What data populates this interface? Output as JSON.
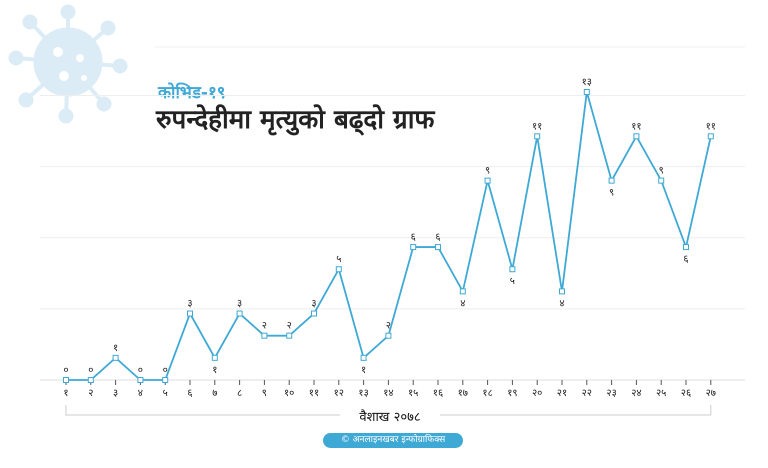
{
  "header": {
    "kicker": "कोभिड-१९",
    "title": "रुपन्देहीमा मृत्युको बढ्दो ग्राफ"
  },
  "credit": "© अनलाइनखबर इन्फोग्राफिक्स",
  "colors": {
    "line": "#3fa9d6",
    "accent": "#3fa9d6",
    "grid": "#eeeeee",
    "virus": "#dcecf7"
  },
  "decor": {
    "virus_icon": "coronavirus-icon"
  },
  "chart_data": {
    "type": "line",
    "title": "रुपन्देहीमा मृत्युको बढ्दो ग्राफ",
    "xlabel": "वैशाख २०७८",
    "ylabel": "",
    "categories": [
      "१",
      "२",
      "३",
      "४",
      "५",
      "६",
      "७",
      "८",
      "९",
      "१०",
      "११",
      "१२",
      "१३",
      "१४",
      "१५",
      "१६",
      "१७",
      "१८",
      "१९",
      "२०",
      "२१",
      "२२",
      "२३",
      "२४",
      "२५",
      "२६",
      "२७"
    ],
    "values": [
      0,
      0,
      1,
      0,
      0,
      3,
      1,
      3,
      2,
      2,
      3,
      5,
      1,
      2,
      6,
      6,
      4,
      9,
      5,
      11,
      4,
      13,
      9,
      11,
      9,
      6,
      11
    ],
    "data_labels": [
      "०",
      "०",
      "१",
      "०",
      "०",
      "३",
      "१",
      "३",
      "२",
      "२",
      "३",
      "५",
      "१",
      "२",
      "६",
      "६",
      "४",
      "९",
      "५",
      "११",
      "४",
      "१३",
      "९",
      "११",
      "९",
      "६",
      "११"
    ],
    "ylim": [
      0,
      13
    ],
    "grid": true,
    "legend": "none"
  }
}
